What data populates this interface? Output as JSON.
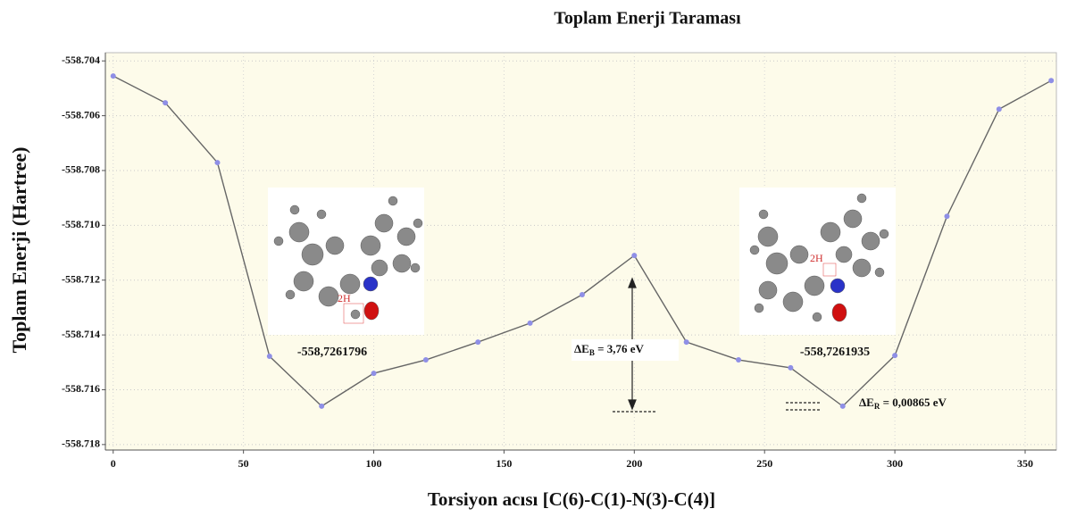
{
  "chart_data": {
    "type": "line",
    "title": "Toplam Enerji Taraması",
    "xlabel": "Torsiyon acısı [C(6)-C(1)-N(3)-C(4)]",
    "ylabel": "Toplam Enerji (Hartree)",
    "x": [
      0,
      20,
      40,
      60,
      80,
      100,
      120,
      140,
      160,
      180,
      200,
      220,
      240,
      260,
      280,
      300,
      320,
      340,
      360
    ],
    "series": [
      {
        "color": "#666666",
        "marker_color": "#8f8fe6",
        "values": [
          -558.70455,
          -558.70553,
          -558.70771,
          -558.71478,
          -558.7166,
          -558.7154,
          -558.71491,
          -558.71426,
          -558.71357,
          -558.71253,
          -558.7111,
          -558.71426,
          -558.71491,
          -558.7152,
          -558.7166,
          -558.71475,
          -558.70967,
          -558.70576,
          -558.70472
        ]
      }
    ],
    "xlim": [
      -3,
      362
    ],
    "xticks": [
      0,
      50,
      100,
      150,
      200,
      250,
      300,
      350
    ],
    "ylim": [
      -558.7182,
      -558.7037
    ],
    "yticks": [
      -558.704,
      -558.706,
      -558.708,
      {
        "value": -558.71,
        "label": "-558.710"
      },
      -558.712,
      -558.714,
      -558.716,
      -558.718
    ],
    "grid": true,
    "annotations": [
      {
        "text": "-558,7261796"
      },
      {
        "text": "-558,7261935"
      },
      {
        "main": "ΔE",
        "sub": "B",
        "rest": " = 3,76 eV"
      },
      {
        "main": "ΔE",
        "sub": "R",
        "rest": " =  0,00865 eV"
      }
    ],
    "molecule_labels": [
      "2H",
      "2H"
    ]
  }
}
